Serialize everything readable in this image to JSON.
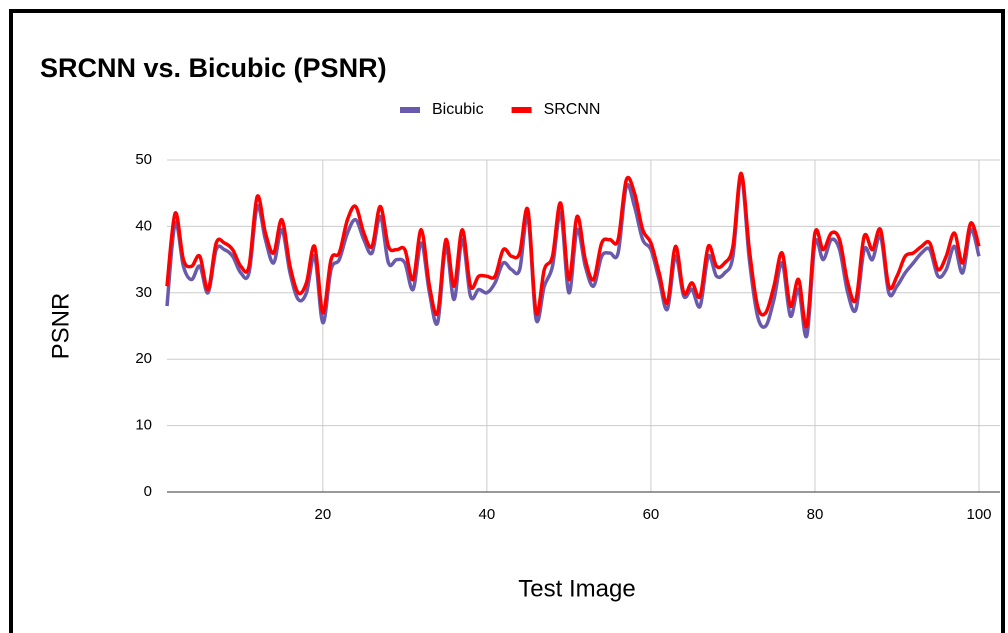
{
  "chart_data": {
    "type": "line",
    "title": "SRCNN vs. Bicubic  (PSNR)",
    "x_label": "Test Image",
    "y_label": "PSNR",
    "x": [
      1,
      2,
      3,
      4,
      5,
      6,
      7,
      8,
      9,
      10,
      11,
      12,
      13,
      14,
      15,
      16,
      17,
      18,
      19,
      20,
      21,
      22,
      23,
      24,
      25,
      26,
      27,
      28,
      29,
      30,
      31,
      32,
      33,
      34,
      35,
      36,
      37,
      38,
      39,
      40,
      41,
      42,
      43,
      44,
      45,
      46,
      47,
      48,
      49,
      50,
      51,
      52,
      53,
      54,
      55,
      56,
      57,
      58,
      59,
      60,
      61,
      62,
      63,
      64,
      65,
      66,
      67,
      68,
      69,
      70,
      71,
      72,
      73,
      74,
      75,
      76,
      77,
      78,
      79,
      80,
      81,
      82,
      83,
      84,
      85,
      86,
      87,
      88,
      89,
      90,
      91,
      92,
      93,
      94,
      95,
      96,
      97,
      98,
      99,
      100
    ],
    "series": [
      {
        "name": "Bicubic",
        "color": "#6a5aad",
        "values": [
          28,
          40.5,
          34,
          32,
          34,
          30,
          36.5,
          36.5,
          35.5,
          33,
          33,
          43,
          38,
          34.5,
          39.5,
          33,
          29,
          30,
          35.5,
          25.5,
          33.5,
          35,
          39,
          41,
          38,
          36,
          41.5,
          34.5,
          35,
          34.5,
          30.5,
          37.5,
          30,
          25.5,
          37,
          29,
          38,
          29.5,
          30.5,
          30,
          31.5,
          34.5,
          33.5,
          33.5,
          41.5,
          26,
          31,
          34,
          42,
          30,
          39.5,
          34,
          31,
          35.5,
          36,
          36,
          46,
          43,
          38,
          36.5,
          32,
          27.5,
          35.5,
          29.5,
          30.5,
          28,
          35.5,
          32.5,
          33,
          35.5,
          47.5,
          35,
          26.5,
          25,
          29,
          34.5,
          26.5,
          30.5,
          23.5,
          37.5,
          35,
          38,
          36.5,
          30,
          27.5,
          36.5,
          35,
          38.5,
          30,
          31,
          33,
          34.5,
          36,
          36.5,
          32.5,
          33.5,
          37,
          33,
          39.5,
          35.5
        ]
      },
      {
        "name": "SRCNN",
        "color": "#ff0000",
        "values": [
          31,
          42,
          35,
          34,
          35.5,
          30.5,
          37.5,
          37.5,
          36.5,
          34,
          34,
          44.5,
          39,
          36,
          41,
          34,
          30,
          31.5,
          37,
          27,
          35,
          36,
          41,
          43,
          39,
          37,
          43,
          37,
          36.5,
          36.5,
          32,
          39.5,
          31,
          27,
          38,
          31,
          39.5,
          31,
          32.5,
          32.5,
          32.5,
          36.5,
          35.5,
          36,
          42.5,
          27,
          33.5,
          35.5,
          43.5,
          32,
          41.5,
          35,
          32,
          37.5,
          38,
          38,
          47,
          45,
          39.5,
          37.5,
          33,
          28.5,
          37,
          30,
          31.5,
          29.5,
          37,
          34,
          34.5,
          37,
          48,
          36.5,
          28,
          27,
          31,
          36,
          28,
          32,
          25,
          39,
          36.5,
          39,
          38,
          31.5,
          29,
          38.5,
          36.5,
          39.5,
          31,
          32.5,
          35.5,
          36,
          37,
          37.5,
          33.5,
          35.5,
          39,
          34.5,
          40.5,
          37
        ]
      }
    ],
    "xlim": [
      1,
      100
    ],
    "xticks": [
      20,
      40,
      60,
      80,
      100
    ],
    "ylim": [
      0,
      50
    ],
    "yticks": [
      0,
      10,
      20,
      30,
      40,
      50
    ],
    "grid": true,
    "legend": "top"
  }
}
